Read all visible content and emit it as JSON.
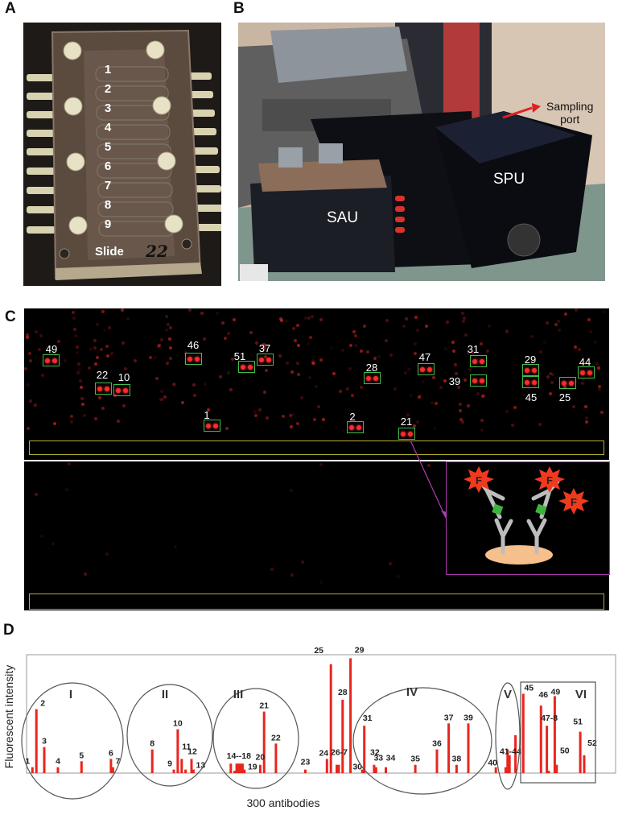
{
  "panels": {
    "a": "A",
    "b": "B",
    "c": "C",
    "d": "D"
  },
  "panel_a": {
    "channel_numbers": [
      "1",
      "2",
      "3",
      "4",
      "5",
      "6",
      "7",
      "8",
      "9"
    ],
    "slide_label": "Slide",
    "handwritten_mark": "22"
  },
  "panel_b": {
    "sau_label": "SAU",
    "spu_label": "SPU",
    "sampling_port_line1": "Sampling",
    "sampling_port_line2": "port",
    "arrow_color": "#e02020"
  },
  "panel_c": {
    "spots": [
      {
        "label": "49"
      },
      {
        "label": "22"
      },
      {
        "label": "10"
      },
      {
        "label": "46"
      },
      {
        "label": "51"
      },
      {
        "label": "37"
      },
      {
        "label": "1"
      },
      {
        "label": "28"
      },
      {
        "label": "47"
      },
      {
        "label": "2"
      },
      {
        "label": "21"
      },
      {
        "label": "31"
      },
      {
        "label": "39"
      },
      {
        "label": "29"
      },
      {
        "label": "45"
      },
      {
        "label": "25"
      },
      {
        "label": "44"
      }
    ],
    "inset": {
      "fluor_label": "F"
    },
    "colors": {
      "box": "#3fbf4a",
      "control_strip": "#b5b030",
      "inset_border": "#b03cb0",
      "spot": "#ff2a2a"
    }
  },
  "chart_data": {
    "type": "bar",
    "title": "",
    "xlabel": "300 antibodies",
    "ylabel": "Fluorescent intensity",
    "xlim": [
      0,
      300
    ],
    "ylim": [
      0,
      1
    ],
    "grid": false,
    "bar_color": "#e8261e",
    "groups": [
      "I",
      "II",
      "III",
      "IV",
      "V",
      "VI"
    ],
    "bars": [
      {
        "x": 3,
        "value": 0.05,
        "label": "1"
      },
      {
        "x": 5,
        "value": 0.54,
        "label": "2"
      },
      {
        "x": 9,
        "value": 0.22,
        "label": "3"
      },
      {
        "x": 16,
        "value": 0.05,
        "label": "4"
      },
      {
        "x": 28,
        "value": 0.1,
        "label": "5"
      },
      {
        "x": 43,
        "value": 0.12,
        "label": "6"
      },
      {
        "x": 44,
        "value": 0.05,
        "label": "7"
      },
      {
        "x": 64,
        "value": 0.2,
        "label": "8"
      },
      {
        "x": 75,
        "value": 0.03,
        "label": "9"
      },
      {
        "x": 77,
        "value": 0.37,
        "label": "10"
      },
      {
        "x": 79,
        "value": 0.12,
        "label": "11"
      },
      {
        "x": 81,
        "value": 0.03,
        "label": ""
      },
      {
        "x": 84,
        "value": 0.12,
        "label": "12"
      },
      {
        "x": 85,
        "value": 0.03,
        "label": "13"
      },
      {
        "x": 104,
        "value": 0.08,
        "label": "14--18"
      },
      {
        "x": 106,
        "value": 0.02,
        "label": ""
      },
      {
        "x": 107,
        "value": 0.08,
        "label": ""
      },
      {
        "x": 108,
        "value": 0.08,
        "label": ""
      },
      {
        "x": 109,
        "value": 0.08,
        "label": ""
      },
      {
        "x": 110,
        "value": 0.08,
        "label": ""
      },
      {
        "x": 111,
        "value": 0.03,
        "label": "19"
      },
      {
        "x": 119,
        "value": 0.07,
        "label": "20"
      },
      {
        "x": 121,
        "value": 0.52,
        "label": "21"
      },
      {
        "x": 127,
        "value": 0.25,
        "label": "22"
      },
      {
        "x": 142,
        "value": 0.03,
        "label": "23"
      },
      {
        "x": 153,
        "value": 0.12,
        "label": "24"
      },
      {
        "x": 155,
        "value": 0.92,
        "label": "25"
      },
      {
        "x": 158,
        "value": 0.07,
        "label": "26-7"
      },
      {
        "x": 159,
        "value": 0.07,
        "label": ""
      },
      {
        "x": 161,
        "value": 0.62,
        "label": "28"
      },
      {
        "x": 165,
        "value": 0.97,
        "label": "29"
      },
      {
        "x": 171,
        "value": 0.03,
        "label": "30"
      },
      {
        "x": 172,
        "value": 0.4,
        "label": "31"
      },
      {
        "x": 177,
        "value": 0.07,
        "label": "32"
      },
      {
        "x": 178,
        "value": 0.05,
        "label": "33"
      },
      {
        "x": 183,
        "value": 0.05,
        "label": "34"
      },
      {
        "x": 198,
        "value": 0.07,
        "label": "35"
      },
      {
        "x": 209,
        "value": 0.2,
        "label": "36"
      },
      {
        "x": 215,
        "value": 0.42,
        "label": "37"
      },
      {
        "x": 219,
        "value": 0.07,
        "label": "38"
      },
      {
        "x": 225,
        "value": 0.42,
        "label": "39"
      },
      {
        "x": 239,
        "value": 0.05,
        "label": "40"
      },
      {
        "x": 244,
        "value": 0.05,
        "label": "41-44"
      },
      {
        "x": 245,
        "value": 0.2,
        "label": ""
      },
      {
        "x": 246,
        "value": 0.15,
        "label": ""
      },
      {
        "x": 249,
        "value": 0.32,
        "label": ""
      },
      {
        "x": 253,
        "value": 0.67,
        "label": "45"
      },
      {
        "x": 262,
        "value": 0.57,
        "label": "46"
      },
      {
        "x": 265,
        "value": 0.4,
        "label": "47-8"
      },
      {
        "x": 266,
        "value": 0.02,
        "label": ""
      },
      {
        "x": 269,
        "value": 0.65,
        "label": "49"
      },
      {
        "x": 270,
        "value": 0.07,
        "label": "50"
      },
      {
        "x": 282,
        "value": 0.35,
        "label": "51"
      },
      {
        "x": 284,
        "value": 0.15,
        "label": "52"
      }
    ]
  }
}
